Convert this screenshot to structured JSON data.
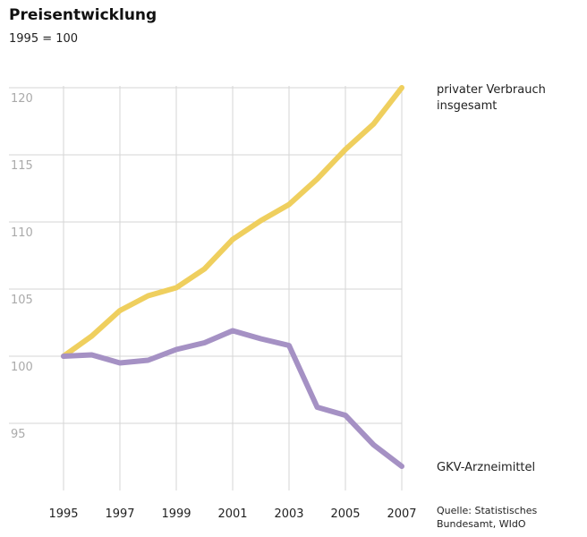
{
  "chart_data": {
    "type": "line",
    "title": "Preisentwicklung",
    "subtitle": "1995 = 100",
    "x": [
      1995,
      1996,
      1997,
      1998,
      1999,
      2000,
      2001,
      2002,
      2003,
      2004,
      2005,
      2006,
      2007
    ],
    "series": [
      {
        "name": "privater Verbrauch insgesamt",
        "color": "#efcf5e",
        "values": [
          100,
          101.5,
          103.4,
          104.5,
          105.1,
          106.5,
          108.7,
          110.1,
          111.3,
          113.2,
          115.4,
          117.3,
          120
        ]
      },
      {
        "name": "GKV-Arzneimittel",
        "color": "#a591c4",
        "values": [
          100,
          100.1,
          99.5,
          99.7,
          100.5,
          101.0,
          101.9,
          101.3,
          100.8,
          96.2,
          95.6,
          93.4,
          91.8
        ]
      }
    ],
    "xlim": [
      1995,
      2007
    ],
    "xticks": [
      1995,
      1997,
      1999,
      2001,
      2003,
      2005,
      2007
    ],
    "ylim": [
      90,
      120
    ],
    "yticks": [
      95,
      100,
      105,
      110,
      115,
      120
    ],
    "grid": true,
    "source": "Quelle: Statistisches Bundesamt, WIdO"
  }
}
